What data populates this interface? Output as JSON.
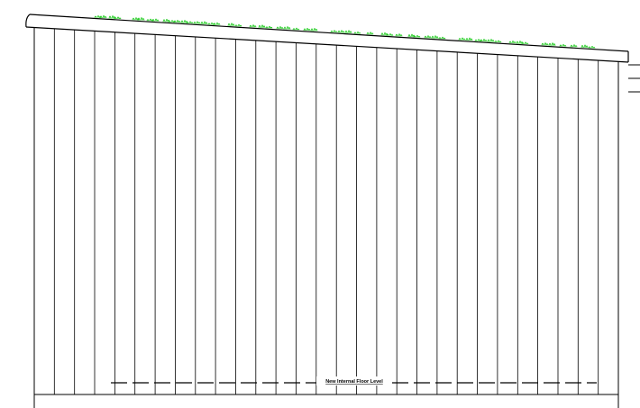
{
  "drawing": {
    "type": "building-elevation",
    "line_color": "#000000",
    "vegetation_color": "#22cc22",
    "cladding": "vertical-boards",
    "board_count": 29,
    "roof": "mono-pitch-sloping-down-to-right",
    "roof_finish": "green-roof-sedum",
    "floor_level_label": "New Internal Floor Level",
    "floor_level_line_style": "dashed"
  }
}
